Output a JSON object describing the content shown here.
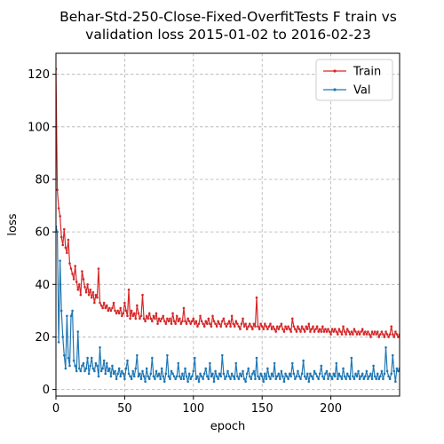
{
  "chart_data": {
    "type": "line",
    "title_lines": [
      "Behar-Std-250-Close-Fixed-OverfitTests F train vs",
      "validation loss 2015-01-02 to 2016-02-23"
    ],
    "xlabel": "epoch",
    "ylabel": "loss",
    "xlim": [
      0,
      250
    ],
    "ylim": [
      -2.5,
      128
    ],
    "x_ticks": [
      0,
      50,
      100,
      150,
      200
    ],
    "y_ticks": [
      0,
      20,
      40,
      60,
      80,
      100,
      120
    ],
    "grid": true,
    "legend_position": "top-right",
    "series": [
      {
        "name": "Train",
        "color": "#d62728",
        "values": [
          122,
          76,
          69,
          66,
          58,
          55,
          61,
          54,
          52,
          57,
          48,
          46,
          44,
          42,
          47,
          41,
          38,
          40,
          36,
          45,
          42,
          39,
          37,
          40,
          36,
          38,
          35,
          37,
          33,
          36,
          35,
          46,
          33,
          32,
          31,
          33,
          31,
          32,
          30,
          31,
          30,
          31,
          33,
          30,
          29,
          30,
          29,
          31,
          28,
          29,
          33,
          30,
          28,
          38,
          27,
          30,
          28,
          29,
          27,
          32,
          29,
          27,
          28,
          36,
          27,
          26,
          28,
          27,
          29,
          27,
          26,
          28,
          27,
          29,
          25,
          27,
          26,
          27,
          28,
          26,
          25,
          27,
          26,
          27,
          25,
          29,
          26,
          25,
          28,
          26,
          27,
          25,
          26,
          31,
          26,
          25,
          27,
          26,
          25,
          26,
          27,
          25,
          26,
          24,
          25,
          28,
          26,
          25,
          24,
          26,
          25,
          27,
          25,
          24,
          28,
          26,
          25,
          24,
          26,
          25,
          24,
          26,
          27,
          25,
          24,
          25,
          26,
          24,
          28,
          25,
          24,
          26,
          25,
          24,
          23,
          25,
          27,
          24,
          25,
          23,
          24,
          25,
          24,
          23,
          25,
          24,
          35,
          24,
          23,
          25,
          24,
          23,
          25,
          24,
          23,
          24,
          25,
          23,
          24,
          23,
          22,
          24,
          23,
          24,
          25,
          23,
          22,
          24,
          23,
          24,
          23,
          22,
          27,
          24,
          23,
          22,
          24,
          23,
          22,
          24,
          23,
          22,
          24,
          23,
          25,
          22,
          23,
          24,
          22,
          23,
          24,
          22,
          23,
          22,
          24,
          22,
          23,
          22,
          23,
          22,
          21,
          23,
          22,
          23,
          22,
          21,
          23,
          22,
          21,
          24,
          22,
          21,
          23,
          22,
          21,
          22,
          21,
          23,
          22,
          21,
          22,
          21,
          22,
          23,
          21,
          22,
          21,
          22,
          21,
          20,
          22,
          21,
          22,
          21,
          22,
          20,
          21,
          22,
          21,
          20,
          22,
          21,
          20,
          21,
          24,
          21,
          20,
          22,
          21,
          20,
          21
        ]
      },
      {
        "name": "Val",
        "color": "#1f77b4",
        "values": [
          62,
          60,
          18,
          49,
          30,
          20,
          13,
          8,
          28,
          12,
          9,
          28,
          30,
          11,
          9,
          7,
          22,
          8,
          7,
          9,
          10,
          7,
          8,
          12,
          6,
          9,
          12,
          8,
          7,
          10,
          9,
          5,
          16,
          7,
          8,
          11,
          6,
          10,
          7,
          8,
          5,
          9,
          6,
          7,
          4,
          6,
          8,
          5,
          7,
          6,
          4,
          8,
          11,
          6,
          5,
          4,
          7,
          5,
          8,
          13,
          5,
          6,
          4,
          7,
          5,
          3,
          8,
          5,
          4,
          6,
          12,
          5,
          4,
          7,
          5,
          6,
          4,
          8,
          5,
          3,
          6,
          13,
          5,
          4,
          7,
          6,
          5,
          4,
          5,
          10,
          5,
          4,
          6,
          4,
          8,
          5,
          3,
          6,
          4,
          5,
          7,
          12,
          4,
          5,
          3,
          6,
          5,
          4,
          6,
          8,
          5,
          4,
          10,
          5,
          6,
          3,
          7,
          5,
          4,
          6,
          5,
          13,
          6,
          4,
          5,
          7,
          5,
          4,
          6,
          5,
          4,
          10,
          5,
          4,
          6,
          5,
          7,
          4,
          3,
          6,
          8,
          5,
          4,
          6,
          7,
          4,
          12,
          5,
          4,
          6,
          5,
          3,
          6,
          4,
          8,
          5,
          4,
          6,
          5,
          10,
          4,
          5,
          6,
          4,
          7,
          5,
          3,
          6,
          5,
          4,
          6,
          5,
          10,
          6,
          4,
          5,
          7,
          5,
          4,
          6,
          11,
          5,
          4,
          6,
          3,
          6,
          5,
          4,
          7,
          6,
          5,
          4,
          6,
          9,
          5,
          4,
          6,
          7,
          4,
          6,
          5,
          4,
          6,
          5,
          10,
          4,
          6,
          5,
          4,
          8,
          5,
          4,
          6,
          5,
          4,
          12,
          5,
          4,
          6,
          5,
          7,
          4,
          5,
          6,
          4,
          5,
          7,
          4,
          5,
          6,
          4,
          9,
          5,
          4,
          6,
          4,
          5,
          7,
          4,
          6,
          16,
          7,
          5,
          4,
          6,
          13,
          7,
          3,
          8,
          7,
          8
        ]
      }
    ]
  }
}
